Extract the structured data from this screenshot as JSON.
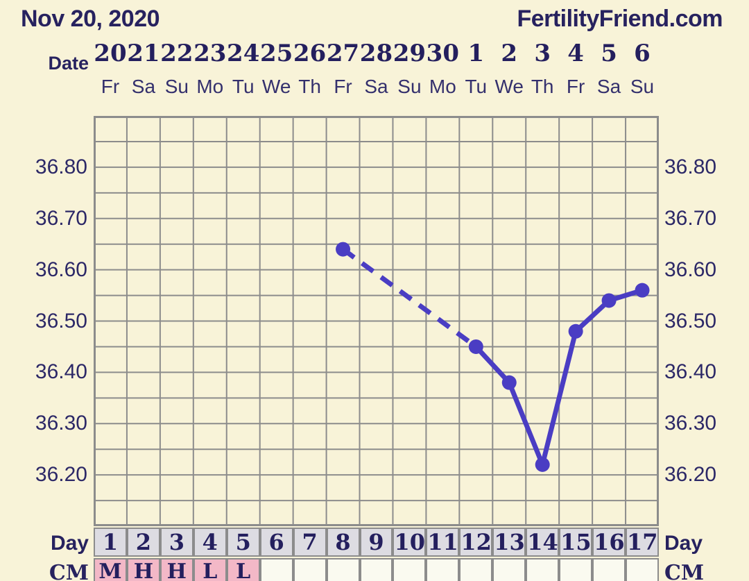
{
  "header": {
    "date_title": "Nov 20, 2020",
    "brand": "FertilityFriend.com"
  },
  "date_row": {
    "label": "Date",
    "dates": [
      "20",
      "21",
      "22",
      "23",
      "24",
      "25",
      "26",
      "27",
      "28",
      "29",
      "30",
      "1",
      "2",
      "3",
      "4",
      "5",
      "6"
    ],
    "weekdays": [
      "Fr",
      "Sa",
      "Su",
      "Mo",
      "Tu",
      "We",
      "Th",
      "Fr",
      "Sa",
      "Su",
      "Mo",
      "Tu",
      "We",
      "Th",
      "Fr",
      "Sa",
      "Su"
    ]
  },
  "day_row": {
    "label_left": "Day",
    "label_right": "Day",
    "days": [
      "1",
      "2",
      "3",
      "4",
      "5",
      "6",
      "7",
      "8",
      "9",
      "10",
      "11",
      "12",
      "13",
      "14",
      "15",
      "16",
      "17"
    ]
  },
  "cm_row": {
    "label_left": "CM",
    "label_right": "CM",
    "values": [
      "M",
      "H",
      "H",
      "L",
      "L",
      "",
      "",
      "",
      "",
      "",
      "",
      "",
      "",
      "",
      "",
      "",
      ""
    ],
    "highlighted_cells": [
      1,
      2,
      3,
      4,
      5
    ]
  },
  "chart_data": {
    "type": "line",
    "title": "",
    "xlabel": "",
    "ylabel": "",
    "x_days": [
      8,
      12,
      13,
      14,
      15,
      16,
      17
    ],
    "values": [
      36.64,
      36.45,
      36.38,
      36.22,
      36.48,
      36.54,
      36.56
    ],
    "dashed_segment_days": [
      8,
      12
    ],
    "x_range": [
      1,
      17
    ],
    "ylim": [
      36.1,
      36.9
    ],
    "grid_step": 0.05,
    "grid": true,
    "legend": "none",
    "ytick_values": [
      36.8,
      36.7,
      36.6,
      36.5,
      36.4,
      36.3,
      36.2
    ],
    "ytick_labels": [
      "36.80",
      "36.70",
      "36.60",
      "36.50",
      "36.40",
      "36.30",
      "36.20"
    ]
  },
  "colors": {
    "background": "#f8f3d8",
    "text_navy": "#27225f",
    "grid_line": "#8c8c8c",
    "temp_line": "#4a3dc3",
    "day_cell_bg": "#dddce2",
    "cm_pink": "#f3b8c7",
    "cm_empty": "#fafaf0"
  }
}
